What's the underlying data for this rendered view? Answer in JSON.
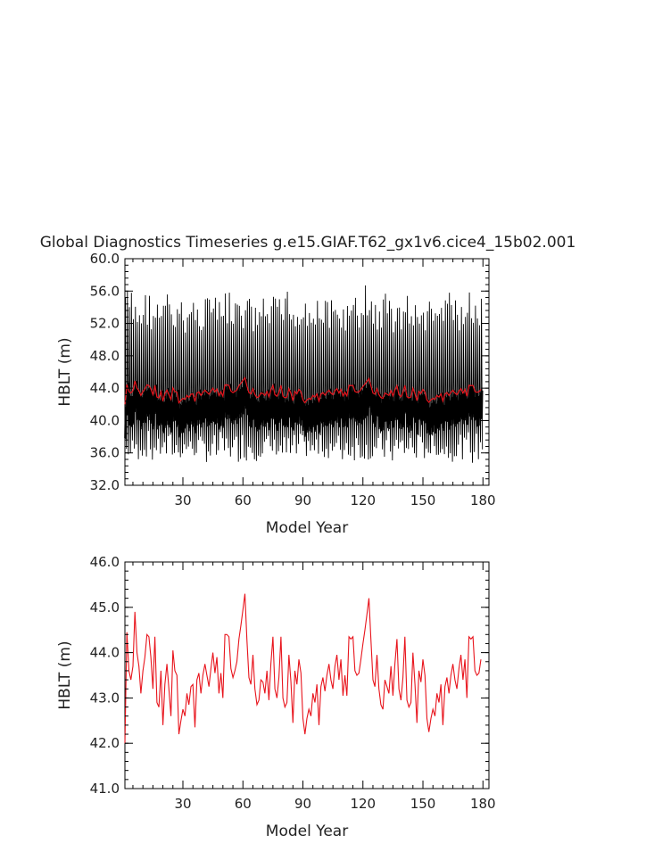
{
  "figure_title": "Global Diagnostics Timeseries g.e15.GIAF.T62_gx1v6.cice4_15b02.001",
  "chart_data": [
    {
      "type": "line",
      "title": "Global Diagnostics Timeseries g.e15.GIAF.T62_gx1v6.cice4_15b02.001",
      "xlabel": "Model Year",
      "ylabel": "HBLT (m)",
      "xlim": [
        1,
        183
      ],
      "ylim": [
        32.0,
        60.0
      ],
      "xticks": [
        30,
        60,
        90,
        120,
        150,
        180
      ],
      "xtick_labels": [
        "30",
        "60",
        "90",
        "120",
        "150",
        "180"
      ],
      "yticks": [
        32.0,
        36.0,
        40.0,
        44.0,
        48.0,
        52.0,
        56.0,
        60.0
      ],
      "ytick_labels": [
        "32.0",
        "36.0",
        "40.0",
        "44.0",
        "48.0",
        "52.0",
        "56.0",
        "60.0"
      ],
      "series": [
        {
          "color": "#000000",
          "monthly_high_peaks": [
            57.2,
            56.4,
            55.8,
            56.1,
            54.9,
            55.2,
            54.8,
            55.0,
            54.7,
            55.3,
            56.2,
            55.6,
            55.9,
            55.1,
            54.6,
            55.4,
            55.0,
            54.5,
            55.1,
            54.8,
            55.6,
            55.9,
            55.3,
            55.0,
            54.2,
            54.6,
            54.3,
            55.0,
            54.8,
            55.1,
            54.7,
            54.5,
            54.9,
            55.2,
            55.6,
            55.4,
            54.8,
            55.1,
            54.9,
            54.6
          ],
          "monthly_low_troughs": [
            34.8,
            35.1,
            34.5,
            34.9,
            35.3,
            34.7,
            35.0,
            35.6,
            35.2,
            34.9,
            35.4,
            35.8,
            35.1,
            34.6,
            35.0,
            35.5,
            34.8,
            35.2,
            35.7,
            35.0,
            34.9,
            35.3,
            35.6,
            35.1,
            34.8,
            35.0,
            35.4,
            35.2,
            34.7,
            35.1,
            35.5,
            35.3,
            34.9,
            35.2,
            35.0,
            35.6,
            35.3,
            35.1,
            34.9,
            35.2
          ],
          "description_values_mean_range": [
            40.0,
            44.0
          ]
        },
        {
          "color": "#e8141c",
          "annual_mean": [
            42.0,
            44.45,
            43.6,
            43.4,
            43.7,
            44.9,
            44.0,
            43.7,
            43.1,
            43.6,
            43.9,
            44.4,
            44.35,
            43.9,
            43.2,
            44.35,
            42.9,
            42.8,
            43.6,
            42.4,
            43.3,
            43.75,
            43.2,
            42.6,
            44.05,
            43.6,
            43.5,
            42.2,
            42.5,
            42.75,
            42.6,
            43.1,
            42.85,
            43.25,
            43.3,
            42.35,
            43.4,
            43.55,
            43.1,
            43.5,
            43.75,
            43.5,
            43.25,
            43.65,
            44.0,
            43.55,
            43.9,
            43.1,
            43.55,
            43.0,
            44.4,
            44.4,
            44.35,
            43.65,
            43.45,
            43.6,
            43.8,
            44.3,
            44.6,
            44.95,
            45.3,
            44.3,
            43.45,
            43.3,
            43.95,
            43.2,
            42.85,
            42.95,
            43.4,
            43.35,
            43.1,
            43.6,
            42.95,
            43.75,
            44.35,
            43.2,
            43.0,
            43.45,
            44.35,
            43.0,
            42.8,
            42.9,
            43.95,
            43.35,
            42.45,
            43.6,
            43.3,
            43.85,
            43.55,
            42.55,
            42.2,
            42.55,
            42.75,
            42.6,
            43.1,
            42.9,
            43.3,
            42.4,
            43.25,
            43.45,
            43.15,
            43.5,
            43.75,
            43.4,
            43.2,
            43.7,
            43.95,
            43.4,
            43.85,
            43.05,
            43.5,
            43.05,
            44.35,
            44.3,
            44.35,
            43.6,
            43.5,
            43.55,
            43.85,
            44.2,
            44.5,
            44.85,
            45.2,
            44.3,
            43.4,
            43.25,
            43.95,
            43.2,
            42.85,
            42.75,
            43.4,
            43.25,
            43.1,
            43.7,
            43.05,
            43.75,
            44.3,
            43.2,
            42.95,
            43.45,
            44.35,
            42.95,
            42.8,
            42.9,
            44.0,
            43.3,
            42.45,
            43.6,
            43.35,
            43.85,
            43.5,
            42.55,
            42.25,
            42.55,
            42.75,
            42.6,
            43.1,
            42.9,
            43.3,
            42.4,
            43.25,
            43.45,
            43.1,
            43.5,
            43.75,
            43.4,
            43.2,
            43.65,
            43.95,
            43.4,
            43.85,
            43.0,
            44.35,
            44.3,
            44.35,
            43.6,
            43.5,
            43.55,
            43.85
          ]
        }
      ]
    },
    {
      "type": "line",
      "xlabel": "Model Year",
      "ylabel": "HBLT (m)",
      "xlim": [
        1,
        183
      ],
      "ylim": [
        41.0,
        46.0
      ],
      "xticks": [
        30,
        60,
        90,
        120,
        150,
        180
      ],
      "xtick_labels": [
        "30",
        "60",
        "90",
        "120",
        "150",
        "180"
      ],
      "yticks": [
        41.0,
        42.0,
        43.0,
        44.0,
        45.0,
        46.0
      ],
      "ytick_labels": [
        "41.0",
        "42.0",
        "43.0",
        "44.0",
        "45.0",
        "46.0"
      ],
      "series": [
        {
          "color": "#e8141c",
          "source": "annual_mean"
        }
      ]
    }
  ]
}
